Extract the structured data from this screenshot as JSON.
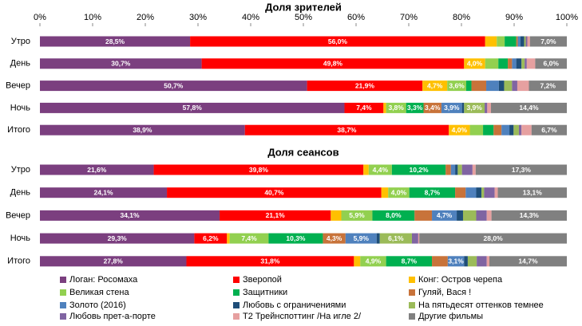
{
  "chart_data": [
    {
      "type": "bar",
      "orientation": "horizontal",
      "stacked": true,
      "title": "Доля зрителей",
      "categories": [
        "Утро",
        "День",
        "Вечер",
        "Ночь",
        "Итого"
      ],
      "xlim": [
        0,
        100
      ],
      "xticks": [
        {
          "value": 0,
          "label": "0%"
        },
        {
          "value": 10,
          "label": "10%"
        },
        {
          "value": 20,
          "label": "20%"
        },
        {
          "value": 30,
          "label": "30%"
        },
        {
          "value": 40,
          "label": "40%"
        },
        {
          "value": 50,
          "label": "50%"
        },
        {
          "value": 60,
          "label": "60%"
        },
        {
          "value": 70,
          "label": "70%"
        },
        {
          "value": 80,
          "label": "80%"
        },
        {
          "value": 90,
          "label": "90%"
        },
        {
          "value": 100,
          "label": "100%"
        }
      ],
      "series": [
        {
          "name": "Логан: Росомаха",
          "color": "#7b3f7f",
          "values": [
            28.5,
            30.7,
            50.7,
            57.8,
            38.9
          ],
          "value_labels": [
            "28,5%",
            "30,7%",
            "50,7%",
            "57,8%",
            "38,9%"
          ]
        },
        {
          "name": "Зверопой",
          "color": "#ff0000",
          "values": [
            56.0,
            49.8,
            21.9,
            7.4,
            38.7
          ],
          "value_labels": [
            "56,0%",
            "49,8%",
            "21,9%",
            "7,4%",
            "38,7%"
          ]
        },
        {
          "name": "Конг: Остров черепа",
          "color": "#ffc000",
          "values": [
            2.2,
            4.0,
            4.7,
            0.5,
            4.0
          ],
          "value_labels": [
            null,
            "4,0%",
            "4,7%",
            null,
            "4,0%"
          ]
        },
        {
          "name": "Великая стена",
          "color": "#92d050",
          "values": [
            1.5,
            2.5,
            3.6,
            3.8,
            2.5
          ],
          "value_labels": [
            null,
            null,
            "3,6%",
            "3,8%",
            null
          ]
        },
        {
          "name": "Защитники",
          "color": "#00b050",
          "values": [
            2.2,
            1.8,
            1.0,
            3.3,
            2.0
          ],
          "value_labels": [
            null,
            null,
            null,
            "3,3%",
            null
          ]
        },
        {
          "name": "Гуляй, Вася !",
          "color": "#c8733a",
          "values": [
            0.3,
            0.8,
            2.8,
            3.4,
            1.5
          ],
          "value_labels": [
            null,
            null,
            null,
            "3,4%",
            null
          ]
        },
        {
          "name": "Золото (2016)",
          "color": "#4f81bd",
          "values": [
            0.5,
            0.8,
            2.4,
            3.9,
            1.5
          ],
          "value_labels": [
            null,
            null,
            null,
            "3,9%",
            null
          ]
        },
        {
          "name": "Любовь с ограничениями",
          "color": "#1f4e79",
          "values": [
            0.7,
            1.0,
            1.0,
            0.4,
            0.8
          ],
          "value_labels": [
            null,
            null,
            null,
            null,
            null
          ]
        },
        {
          "name": "На пятьдесят оттенков темнее",
          "color": "#9bbb59",
          "values": [
            0.3,
            0.6,
            1.5,
            3.9,
            1.0
          ],
          "value_labels": [
            null,
            null,
            null,
            "3,9%",
            null
          ]
        },
        {
          "name": "Любовь прет-а-порте",
          "color": "#8064a2",
          "values": [
            0.3,
            0.4,
            1.0,
            0.5,
            0.5
          ],
          "value_labels": [
            null,
            null,
            null,
            null,
            null
          ]
        },
        {
          "name": "T2 Трейнспоттинг /На игле 2/",
          "color": "#e6a0a0",
          "values": [
            0.5,
            1.6,
            2.2,
            0.7,
            1.9
          ],
          "value_labels": [
            null,
            null,
            null,
            null,
            null
          ]
        },
        {
          "name": "Другие фильмы",
          "color": "#808080",
          "values": [
            7.0,
            6.0,
            7.2,
            14.4,
            6.7
          ],
          "value_labels": [
            "7,0%",
            "6,0%",
            "7,2%",
            "14,4%",
            "6,7%"
          ]
        }
      ]
    },
    {
      "type": "bar",
      "orientation": "horizontal",
      "stacked": true,
      "title": "Доля сеансов",
      "categories": [
        "Утро",
        "День",
        "Вечер",
        "Ночь",
        "Итого"
      ],
      "xlim": [
        0,
        100
      ],
      "series": [
        {
          "name": "Логан: Росомаха",
          "color": "#7b3f7f",
          "values": [
            21.6,
            24.1,
            34.1,
            29.3,
            27.8
          ],
          "value_labels": [
            "21,6%",
            "24,1%",
            "34,1%",
            "29,3%",
            "27,8%"
          ]
        },
        {
          "name": "Зверопой",
          "color": "#ff0000",
          "values": [
            39.8,
            40.7,
            21.1,
            6.2,
            31.8
          ],
          "value_labels": [
            "39,8%",
            "40,7%",
            "21,1%",
            "6,2%",
            "31,8%"
          ]
        },
        {
          "name": "Конг: Остров черепа",
          "color": "#ffc000",
          "values": [
            1.0,
            1.3,
            2.0,
            0.5,
            1.2
          ],
          "value_labels": [
            null,
            null,
            null,
            null,
            null
          ]
        },
        {
          "name": "Великая стена",
          "color": "#92d050",
          "values": [
            4.4,
            4.0,
            5.9,
            7.4,
            4.9
          ],
          "value_labels": [
            "4,4%",
            "4,0%",
            "5,9%",
            "7,4%",
            "4,9%"
          ]
        },
        {
          "name": "Защитники",
          "color": "#00b050",
          "values": [
            10.2,
            8.7,
            8.0,
            10.3,
            8.7
          ],
          "value_labels": [
            "10,2%",
            "8,7%",
            "8,0%",
            "10,3%",
            "8,7%"
          ]
        },
        {
          "name": "Гуляй, Вася !",
          "color": "#c8733a",
          "values": [
            1.0,
            2.0,
            3.3,
            4.3,
            3.0
          ],
          "value_labels": [
            null,
            null,
            null,
            "4,3%",
            null
          ]
        },
        {
          "name": "Золото (2016)",
          "color": "#4f81bd",
          "values": [
            0.8,
            2.0,
            4.7,
            5.9,
            3.1
          ],
          "value_labels": [
            null,
            null,
            "4,7%",
            "5,9%",
            "3,1%"
          ]
        },
        {
          "name": "Любовь с ограничениями",
          "color": "#1f4e79",
          "values": [
            0.5,
            1.0,
            1.2,
            0.6,
            0.7
          ],
          "value_labels": [
            null,
            null,
            null,
            null,
            null
          ]
        },
        {
          "name": "На пятьдесят оттенков темнее",
          "color": "#9bbb59",
          "values": [
            0.8,
            0.5,
            2.5,
            6.1,
            1.7
          ],
          "value_labels": [
            null,
            null,
            null,
            "6,1%",
            null
          ]
        },
        {
          "name": "Любовь прет-а-порте",
          "color": "#8064a2",
          "values": [
            2.0,
            2.0,
            2.0,
            1.2,
            1.9
          ],
          "value_labels": [
            null,
            null,
            null,
            null,
            null
          ]
        },
        {
          "name": "T2 Трейнспоттинг /На игле 2/",
          "color": "#e6a0a0",
          "values": [
            0.6,
            0.6,
            0.9,
            0.2,
            0.5
          ],
          "value_labels": [
            null,
            null,
            null,
            null,
            null
          ]
        },
        {
          "name": "Другие фильмы",
          "color": "#808080",
          "values": [
            17.3,
            13.1,
            14.3,
            28.0,
            14.7
          ],
          "value_labels": [
            "17,3%",
            "13,1%",
            "14,3%",
            "28,0%",
            "14,7%"
          ]
        }
      ]
    }
  ]
}
